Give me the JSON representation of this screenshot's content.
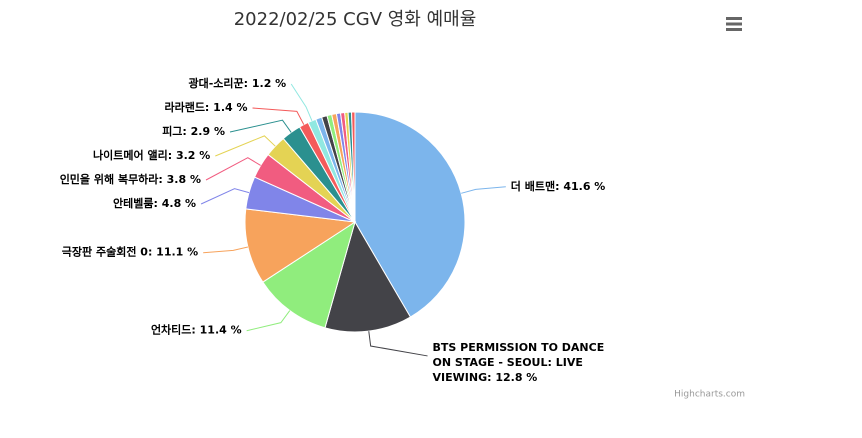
{
  "chart_data": {
    "type": "pie",
    "title": "2022/02/25 CGV 영화 예매율",
    "credits": "Highcharts.com",
    "values": [
      41.6,
      12.8,
      11.4,
      11.1,
      4.8,
      3.8,
      3.2,
      2.9,
      1.4,
      1.2,
      0.9,
      0.8,
      0.7,
      0.7,
      0.6,
      0.6,
      0.5,
      0.5,
      0.5
    ],
    "value_labels": [
      "더 배트맨: 41.6 %",
      "BTS PERMISSION TO DANCE ON STAGE - SEOUL: LIVE VIEWING: 12.8 %",
      "언차티드: 11.4 %",
      "극장판 주술회전 0: 11.1 %",
      "안테벨룸: 4.8 %",
      "인민을 위해 복무하라: 3.8 %",
      "나이트메어 앨리: 3.2 %",
      "피그: 2.9 %",
      "라라랜드: 1.4 %",
      "광대-소리꾼: 1.2 %",
      null,
      null,
      null,
      null,
      null,
      null,
      null,
      null,
      null
    ],
    "colors": [
      "#7cb5ec",
      "#434348",
      "#90ed7d",
      "#f7a35c",
      "#8085e9",
      "#f15c80",
      "#e4d354",
      "#2b908f",
      "#f45b5b",
      "#91e8e1",
      "#7cb5ec",
      "#434348",
      "#90ed7d",
      "#f7a35c",
      "#8085e9",
      "#f15c80",
      "#e4d354",
      "#2b908f",
      "#f45b5b"
    ]
  }
}
